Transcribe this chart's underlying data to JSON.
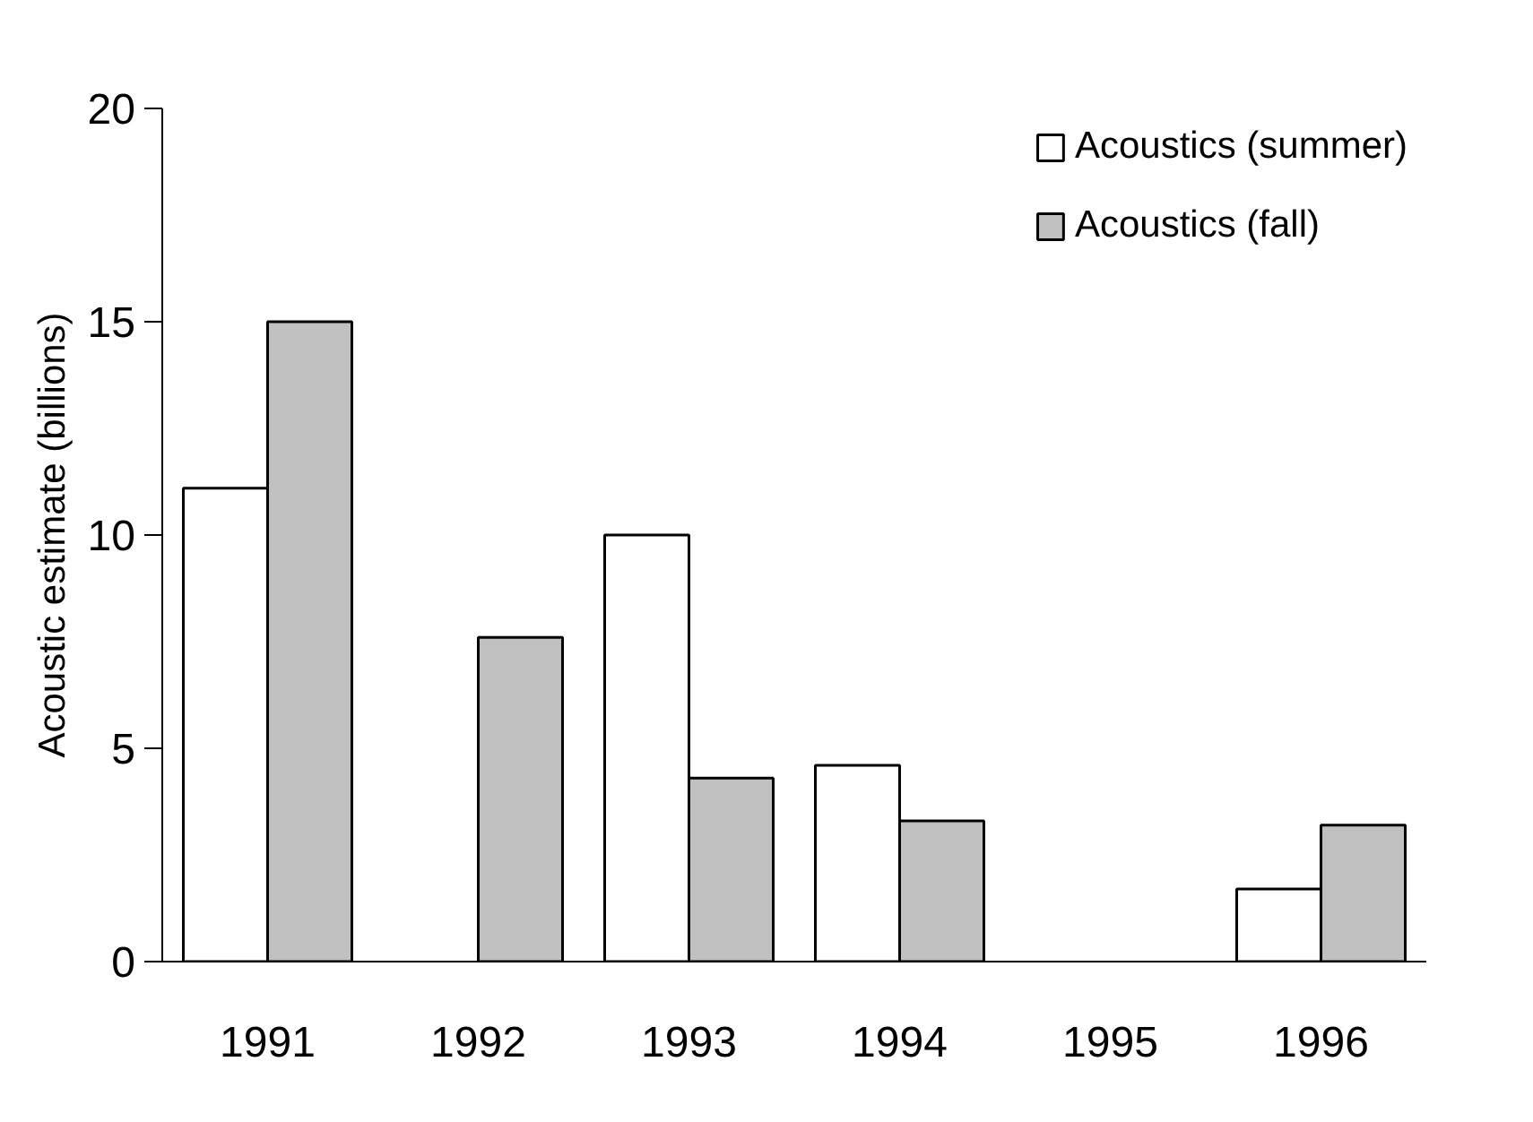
{
  "chart_data": {
    "type": "bar",
    "ylabel": "Acoustic estimate (billions)",
    "categories": [
      "1991",
      "1992",
      "1993",
      "1994",
      "1995",
      "1996"
    ],
    "series": [
      {
        "name": "Acoustics (summer)",
        "color": "#ffffff",
        "values": [
          11.1,
          null,
          10.0,
          4.6,
          null,
          1.7
        ]
      },
      {
        "name": "Acoustics (fall)",
        "color": "#c0c0c0",
        "values": [
          15.0,
          7.6,
          4.3,
          3.3,
          null,
          3.2
        ]
      }
    ],
    "ylim": [
      0,
      20
    ],
    "yticks": [
      0,
      5,
      10,
      15,
      20
    ],
    "grid": false,
    "legend": "top right"
  }
}
